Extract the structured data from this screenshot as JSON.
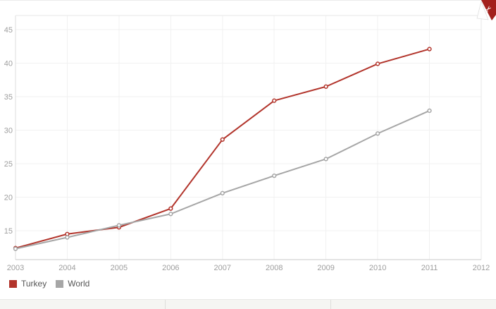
{
  "chart_data": {
    "type": "line",
    "title": "",
    "xlabel": "",
    "ylabel": "",
    "x_tick_labels": [
      "2003",
      "2004",
      "2005",
      "2006",
      "2007",
      "2008",
      "2009",
      "2010",
      "2011",
      "2012"
    ],
    "y_ticks": [
      15,
      20,
      25,
      30,
      35,
      40,
      45
    ],
    "ylim": [
      10.7,
      47.1
    ],
    "xlim": [
      2003,
      2012
    ],
    "grid": true,
    "legend_position": "bottom-left",
    "marker": "open-circle",
    "categories": [
      2003,
      2004,
      2005,
      2006,
      2007,
      2008,
      2009,
      2010,
      2011
    ],
    "series": [
      {
        "name": "Turkey",
        "color": "#b2342b",
        "values": [
          12.4,
          14.5,
          15.5,
          18.3,
          28.6,
          34.4,
          36.5,
          39.9,
          42.1
        ]
      },
      {
        "name": "World",
        "color": "#a6a6a6",
        "values": [
          12.3,
          14.0,
          15.8,
          17.5,
          20.6,
          23.2,
          25.7,
          29.5,
          32.9
        ]
      }
    ]
  },
  "clip_badge": {
    "glyph": "✂",
    "color": "#a3201c"
  },
  "colors": {
    "grid": "#f1f1f1",
    "plot_border": "#e7e7e7",
    "axis_bottom": "#c9c9c9",
    "axis_left": "#dcdcdc",
    "tick_text": "#9e9e9e",
    "legend_text": "#555555",
    "bottom_bar": "#f5f5f2",
    "bottom_bar_divider": "#dedddb",
    "badge_red": "#a3201c",
    "marker_fill": "#ffffff"
  }
}
